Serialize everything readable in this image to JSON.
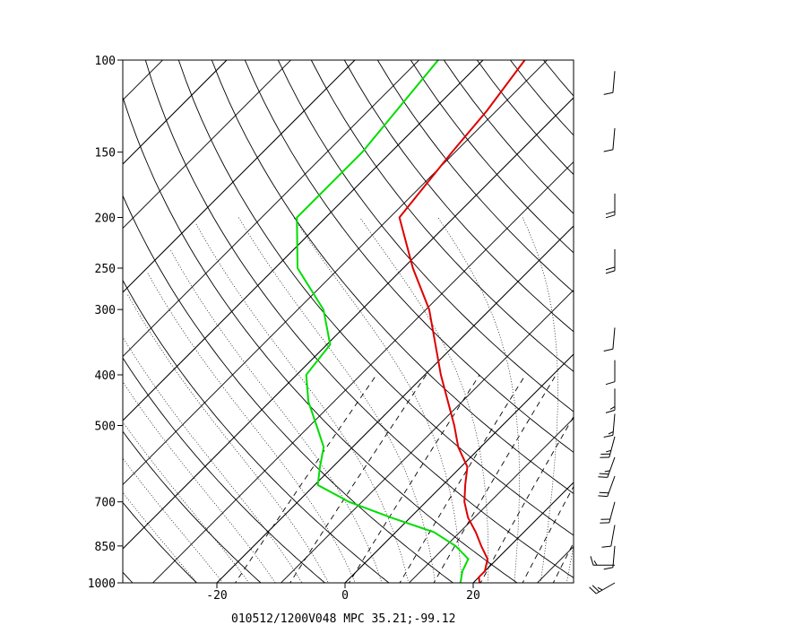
{
  "chart_data": {
    "type": "line",
    "title": "",
    "xlabel": "",
    "ylabel": "",
    "y_scale": "log-pressure",
    "x_skewed": true,
    "pressure_levels": [
      "100",
      "150",
      "200",
      "250",
      "300",
      "400",
      "500",
      "700",
      "850",
      "1000"
    ],
    "temperature_ticks": [
      "-20",
      "0",
      "20"
    ],
    "xlim": [
      -34,
      35
    ],
    "ylim": [
      1000,
      100
    ],
    "grid": true,
    "footer": "010512/1200V048   MPC   35.21;-99.12",
    "footer_logo": "MPC",
    "series": [
      {
        "color": "#dd0000",
        "points": [
          {
            "p": 1000,
            "t": 21.0
          },
          {
            "p": 975,
            "t": 20.0
          },
          {
            "p": 950,
            "t": 20.0
          },
          {
            "p": 900,
            "t": 18.5
          },
          {
            "p": 850,
            "t": 15.5
          },
          {
            "p": 800,
            "t": 12.5
          },
          {
            "p": 750,
            "t": 9.0
          },
          {
            "p": 700,
            "t": 6.0
          },
          {
            "p": 650,
            "t": 3.5
          },
          {
            "p": 600,
            "t": 1.0
          },
          {
            "p": 550,
            "t": -3.5
          },
          {
            "p": 500,
            "t": -7.5
          },
          {
            "p": 400,
            "t": -17.5
          },
          {
            "p": 300,
            "t": -29.5
          },
          {
            "p": 250,
            "t": -38.5
          },
          {
            "p": 200,
            "t": -48.5
          },
          {
            "p": 150,
            "t": -50.5
          },
          {
            "p": 125,
            "t": -51.5
          },
          {
            "p": 100,
            "t": -53.5
          }
        ]
      },
      {
        "color": "#00dd00",
        "points": [
          {
            "p": 1000,
            "t": 18.0
          },
          {
            "p": 950,
            "t": 16.5
          },
          {
            "p": 900,
            "t": 15.5
          },
          {
            "p": 850,
            "t": 11.5
          },
          {
            "p": 800,
            "t": 6.0
          },
          {
            "p": 750,
            "t": -3.0
          },
          {
            "p": 700,
            "t": -12.0
          },
          {
            "p": 650,
            "t": -19.5
          },
          {
            "p": 600,
            "t": -22.0
          },
          {
            "p": 550,
            "t": -24.5
          },
          {
            "p": 500,
            "t": -29.0
          },
          {
            "p": 450,
            "t": -34.0
          },
          {
            "p": 400,
            "t": -38.5
          },
          {
            "p": 350,
            "t": -39.5
          },
          {
            "p": 300,
            "t": -46.0
          },
          {
            "p": 250,
            "t": -56.5
          },
          {
            "p": 200,
            "t": -64.5
          },
          {
            "p": 150,
            "t": -64.5
          },
          {
            "p": 100,
            "t": -67.0
          }
        ]
      }
    ],
    "wind_barbs": [
      {
        "p": 1000,
        "dir": 240,
        "speed": 25
      },
      {
        "p": 925,
        "dir": 270,
        "speed": 15
      },
      {
        "p": 850,
        "dir": 185,
        "speed": 10
      },
      {
        "p": 775,
        "dir": 190,
        "speed": 10
      },
      {
        "p": 700,
        "dir": 195,
        "speed": 20
      },
      {
        "p": 625,
        "dir": 200,
        "speed": 20
      },
      {
        "p": 575,
        "dir": 200,
        "speed": 25
      },
      {
        "p": 525,
        "dir": 195,
        "speed": 25
      },
      {
        "p": 475,
        "dir": 185,
        "speed": 15
      },
      {
        "p": 425,
        "dir": 180,
        "speed": 15
      },
      {
        "p": 375,
        "dir": 180,
        "speed": 10
      },
      {
        "p": 325,
        "dir": 185,
        "speed": 10
      },
      {
        "p": 230,
        "dir": 180,
        "speed": 20
      },
      {
        "p": 180,
        "dir": 180,
        "speed": 20
      },
      {
        "p": 135,
        "dir": 185,
        "speed": 10
      },
      {
        "p": 105,
        "dir": 185,
        "speed": 10
      }
    ]
  }
}
